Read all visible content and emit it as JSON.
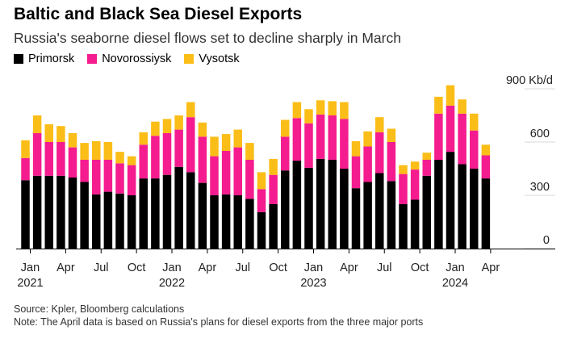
{
  "chart_data": {
    "type": "bar",
    "stacked": true,
    "title": "Baltic and Black Sea Diesel Exports",
    "subtitle": "Russia's seaborne diesel flows set to decline sharply in March",
    "unit_label": "900 Kb/d",
    "ylim": [
      0,
      900
    ],
    "yticks": [
      "0",
      "300",
      "600"
    ],
    "grid": true,
    "legend_position": "top-left",
    "categories": [
      "2021-01",
      "2021-02",
      "2021-03",
      "2021-04",
      "2021-05",
      "2021-06",
      "2021-07",
      "2021-08",
      "2021-09",
      "2021-10",
      "2021-11",
      "2021-12",
      "2022-01",
      "2022-02",
      "2022-03",
      "2022-04",
      "2022-05",
      "2022-06",
      "2022-07",
      "2022-08",
      "2022-09",
      "2022-10",
      "2022-11",
      "2022-12",
      "2023-01",
      "2023-02",
      "2023-03",
      "2023-04",
      "2023-05",
      "2023-06",
      "2023-07",
      "2023-08",
      "2023-09",
      "2023-10",
      "2023-11",
      "2023-12",
      "2024-01",
      "2024-02",
      "2024-03",
      "2024-04"
    ],
    "series": [
      {
        "name": "Primorsk",
        "color": "#000000",
        "values": [
          385,
          410,
          410,
          410,
          400,
          375,
          305,
          320,
          310,
          300,
          395,
          395,
          415,
          460,
          430,
          370,
          300,
          305,
          300,
          280,
          205,
          250,
          440,
          495,
          455,
          505,
          500,
          450,
          340,
          375,
          425,
          380,
          250,
          275,
          410,
          500,
          545,
          475,
          450,
          395
        ]
      },
      {
        "name": "Novorossiysk",
        "color": "#f41c8f",
        "values": [
          125,
          240,
          190,
          190,
          170,
          125,
          195,
          180,
          170,
          170,
          190,
          240,
          235,
          210,
          310,
          260,
          220,
          245,
          270,
          220,
          130,
          165,
          190,
          240,
          250,
          250,
          250,
          280,
          180,
          200,
          230,
          220,
          170,
          170,
          90,
          260,
          260,
          285,
          215,
          130
        ]
      },
      {
        "name": "Vysotsk",
        "color": "#fbbd17",
        "values": [
          100,
          100,
          100,
          90,
          80,
          95,
          105,
          100,
          65,
          50,
          70,
          80,
          80,
          80,
          85,
          80,
          110,
          95,
          100,
          95,
          95,
          90,
          95,
          90,
          80,
          80,
          80,
          95,
          85,
          85,
          85,
          75,
          50,
          45,
          40,
          95,
          115,
          80,
          95,
          60
        ]
      }
    ],
    "x_tick_labels": [
      {
        "index": 0,
        "label": "Jan",
        "year": "2021"
      },
      {
        "index": 3,
        "label": "Apr",
        "year": ""
      },
      {
        "index": 6,
        "label": "Jul",
        "year": ""
      },
      {
        "index": 9,
        "label": "Oct",
        "year": ""
      },
      {
        "index": 12,
        "label": "Jan",
        "year": "2022"
      },
      {
        "index": 15,
        "label": "Apr",
        "year": ""
      },
      {
        "index": 18,
        "label": "Jul",
        "year": ""
      },
      {
        "index": 21,
        "label": "Oct",
        "year": ""
      },
      {
        "index": 24,
        "label": "Jan",
        "year": "2023"
      },
      {
        "index": 27,
        "label": "Apr",
        "year": ""
      },
      {
        "index": 30,
        "label": "Jul",
        "year": ""
      },
      {
        "index": 33,
        "label": "Oct",
        "year": ""
      },
      {
        "index": 36,
        "label": "Jan",
        "year": "2024"
      },
      {
        "index": 39,
        "label": "Apr",
        "year": ""
      }
    ]
  },
  "footer": {
    "source": "Source: Kpler, Bloomberg calculations",
    "note": "Note: The April data is based on Russia's plans for diesel exports from the three major ports"
  }
}
